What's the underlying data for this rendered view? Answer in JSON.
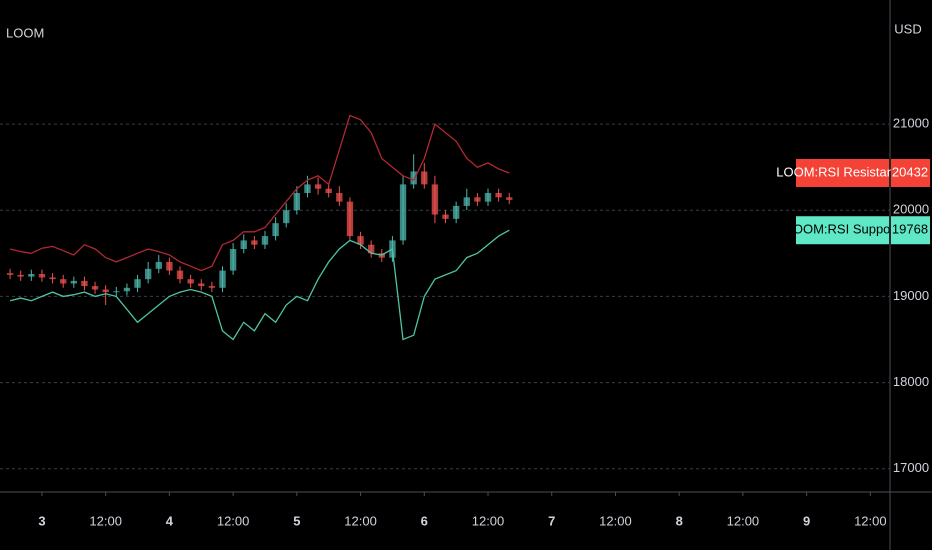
{
  "chart_data": {
    "type": "candlestick",
    "title": "LOOM",
    "y_axis_label": "USD",
    "x": [
      -6,
      -4,
      -2,
      0,
      2,
      4,
      6,
      8,
      10,
      12,
      14,
      16,
      18,
      20,
      22,
      24,
      26,
      28,
      30,
      32,
      34,
      36,
      38,
      40,
      42,
      44,
      46,
      48,
      50,
      52,
      54,
      56,
      58,
      60,
      62,
      64,
      66,
      68,
      70,
      72,
      74,
      76,
      78,
      80,
      82,
      84,
      86,
      88
    ],
    "open": [
      19270,
      19250,
      19230,
      19260,
      19220,
      19200,
      19150,
      19180,
      19120,
      19080,
      19050,
      19060,
      19100,
      19200,
      19320,
      19400,
      19300,
      19200,
      19150,
      19120,
      19100,
      19300,
      19550,
      19650,
      19600,
      19700,
      19850,
      20000,
      20200,
      20300,
      20250,
      20200,
      20100,
      19700,
      19600,
      19500,
      19450,
      19650,
      20300,
      20450,
      20300,
      19950,
      19900,
      20050,
      20150,
      20100,
      20200,
      20150
    ],
    "high": [
      19320,
      19300,
      19310,
      19310,
      19270,
      19250,
      19230,
      19230,
      19170,
      19130,
      19110,
      19150,
      19250,
      19400,
      19480,
      19450,
      19350,
      19250,
      19200,
      19170,
      19350,
      19620,
      19720,
      19700,
      19760,
      19920,
      20080,
      20280,
      20400,
      20380,
      20320,
      20280,
      20150,
      19750,
      19650,
      19550,
      19700,
      20400,
      20650,
      20550,
      20400,
      20000,
      20100,
      20250,
      20200,
      20250,
      20250,
      20200
    ],
    "low": [
      19200,
      19180,
      19180,
      19170,
      19150,
      19100,
      19100,
      19070,
      19030,
      18900,
      19000,
      19010,
      19050,
      19150,
      19270,
      19250,
      19150,
      19100,
      19070,
      19050,
      19050,
      19250,
      19500,
      19550,
      19550,
      19650,
      19800,
      19950,
      20150,
      20180,
      20150,
      20050,
      19650,
      19550,
      19450,
      19400,
      19400,
      19600,
      20250,
      20250,
      19850,
      19850,
      19850,
      20000,
      20050,
      20050,
      20100,
      20070
    ],
    "close": [
      19250,
      19230,
      19260,
      19220,
      19200,
      19150,
      19180,
      19120,
      19080,
      19050,
      19060,
      19100,
      19200,
      19320,
      19400,
      19300,
      19200,
      19150,
      19120,
      19100,
      19300,
      19550,
      19650,
      19600,
      19700,
      19850,
      20000,
      20200,
      20300,
      20250,
      20200,
      20100,
      19700,
      19600,
      19500,
      19450,
      19650,
      20300,
      20450,
      20300,
      19950,
      19900,
      20050,
      20150,
      20100,
      20200,
      20150,
      20120
    ],
    "up_color": "#4db6ac",
    "down_color": "#ef5350",
    "series": [
      {
        "name": "LOOM:RSI Resistance",
        "type": "line",
        "color": "#b22833",
        "label_color": "#f44336",
        "values": [
          19550,
          19520,
          19500,
          19560,
          19580,
          19530,
          19480,
          19600,
          19550,
          19450,
          19400,
          19450,
          19500,
          19550,
          19520,
          19480,
          19400,
          19350,
          19300,
          19350,
          19600,
          19650,
          19750,
          19750,
          19800,
          19950,
          20100,
          20250,
          20350,
          20400,
          20300,
          20700,
          21100,
          21050,
          20900,
          20600,
          20500,
          20400,
          20350,
          20600,
          21000,
          20900,
          20800,
          20600,
          20500,
          20550,
          20480,
          20432
        ]
      },
      {
        "name": "LOOM:RSI Support",
        "type": "line",
        "color": "#4fc3a5",
        "label_color": "#5ee8c6",
        "values": [
          18950,
          18980,
          18950,
          19000,
          19050,
          19000,
          19020,
          19050,
          19000,
          19030,
          19000,
          18850,
          18700,
          18800,
          18900,
          19000,
          19050,
          19080,
          19050,
          19000,
          18600,
          18500,
          18700,
          18600,
          18800,
          18700,
          18900,
          19000,
          18950,
          19200,
          19400,
          19550,
          19650,
          19600,
          19500,
          19480,
          19550,
          18500,
          18550,
          19000,
          19200,
          19250,
          19300,
          19450,
          19500,
          19600,
          19700,
          19768
        ]
      }
    ],
    "xlim": [
      -7.9,
      159.7
    ],
    "xticks": [
      {
        "value": 0,
        "label": "3"
      },
      {
        "value": 12,
        "label": "12:00"
      },
      {
        "value": 24,
        "label": "4"
      },
      {
        "value": 36,
        "label": "12:00"
      },
      {
        "value": 48,
        "label": "5"
      },
      {
        "value": 60,
        "label": "12:00"
      },
      {
        "value": 72,
        "label": "6"
      },
      {
        "value": 84,
        "label": "12:00"
      },
      {
        "value": 96,
        "label": "7"
      },
      {
        "value": 108,
        "label": "12:00"
      },
      {
        "value": 120,
        "label": "8"
      },
      {
        "value": 132,
        "label": "12:00"
      },
      {
        "value": 144,
        "label": "9"
      },
      {
        "value": 156,
        "label": "12:00"
      }
    ],
    "ylim": [
      16730,
      22440
    ],
    "yticks": [
      17000,
      18000,
      19000,
      20000,
      21000
    ],
    "grid": true
  }
}
